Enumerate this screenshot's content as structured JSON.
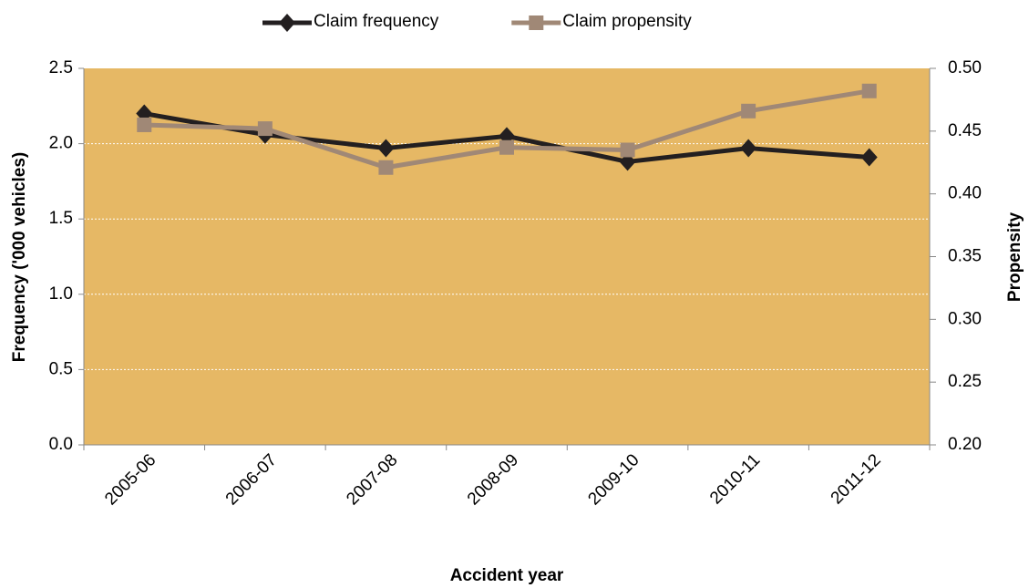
{
  "chart_data": {
    "type": "line",
    "x_label": "Accident year",
    "y_label": "Frequency ('000 vehicles)",
    "y2_label": "Propensity",
    "categories": [
      "2005-06",
      "2006-07",
      "2007-08",
      "2008-09",
      "2009-10",
      "2010-11",
      "2011-12"
    ],
    "series": [
      {
        "name": "Claim frequency",
        "color": "#231f20",
        "marker": "diamond",
        "values": [
          2.2,
          2.06,
          1.97,
          2.05,
          1.88,
          1.97,
          1.91
        ]
      },
      {
        "name": "Claim propensity",
        "color": "#a08876",
        "marker": "square",
        "axis": "y2",
        "values": [
          0.455,
          0.452,
          0.421,
          0.437,
          0.435,
          0.466,
          0.482
        ]
      }
    ],
    "ylim": [
      0,
      2.5
    ],
    "yticks": [
      {
        "value": 0,
        "label": "0.0"
      },
      0.5,
      {
        "value": 1,
        "label": "1.0"
      },
      1.5,
      {
        "value": 2,
        "label": "2.0"
      },
      2.5
    ],
    "y2lim": [
      0.2,
      0.5
    ],
    "y2ticks": [
      {
        "value": 0.2,
        "label": "0.20"
      },
      0.25,
      {
        "value": 0.3,
        "label": "0.30"
      },
      0.35,
      {
        "value": 0.4,
        "label": "0.40"
      },
      0.45,
      {
        "value": 0.5,
        "label": "0.50"
      }
    ],
    "grid": true,
    "background_color": "#e6b865",
    "legend": "top"
  }
}
